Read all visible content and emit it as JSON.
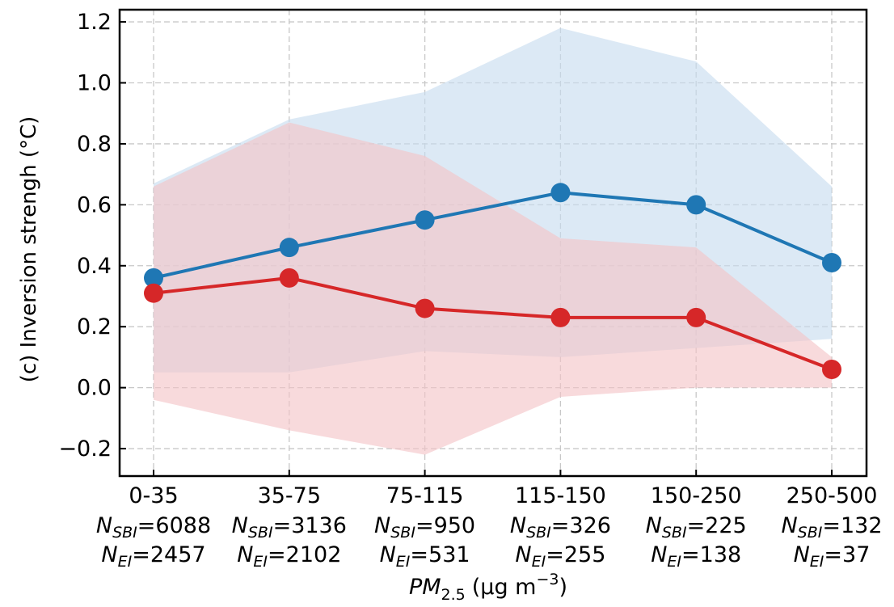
{
  "chart_data": {
    "type": "line",
    "ylabel": "(c) Inversion strengh (°C)",
    "xlabel": {
      "var": "PM",
      "sub": "2.5",
      "unit": "(μg m",
      "exp": "−3",
      "close": ")"
    },
    "categories": [
      "0-35",
      "35-75",
      "75-115",
      "115-150",
      "150-250",
      "250-500"
    ],
    "n_sbi": [
      "6088",
      "3136",
      "950",
      "326",
      "225",
      "132"
    ],
    "n_ei": [
      "2457",
      "2102",
      "531",
      "255",
      "138",
      "37"
    ],
    "n_prefix": "N",
    "n_sbi_sub": "SBI",
    "n_ei_sub": "EI",
    "ylim": [
      -0.29,
      1.24
    ],
    "yticks": [
      -0.2,
      0.0,
      0.2,
      0.4,
      0.6,
      0.8,
      1.0,
      1.2
    ],
    "ytick_labels": [
      "−0.2",
      "0.0",
      "0.2",
      "0.4",
      "0.6",
      "0.8",
      "1.0",
      "1.2"
    ],
    "grid": true,
    "series": [
      {
        "key": "sbi",
        "color": "#1f77b4",
        "band_color": "#c6dbef",
        "values": [
          0.36,
          0.46,
          0.55,
          0.64,
          0.6,
          0.41
        ],
        "upper": [
          0.67,
          0.88,
          0.97,
          1.18,
          1.07,
          0.66
        ],
        "lower": [
          0.05,
          0.05,
          0.12,
          0.1,
          0.13,
          0.16
        ]
      },
      {
        "key": "ei",
        "color": "#d62728",
        "band_color": "#f4c4c6",
        "values": [
          0.31,
          0.36,
          0.26,
          0.23,
          0.23,
          0.06
        ],
        "upper": [
          0.66,
          0.87,
          0.76,
          0.49,
          0.46,
          0.1
        ],
        "lower": [
          -0.04,
          -0.14,
          -0.22,
          -0.03,
          0.0,
          0.0
        ]
      }
    ]
  }
}
